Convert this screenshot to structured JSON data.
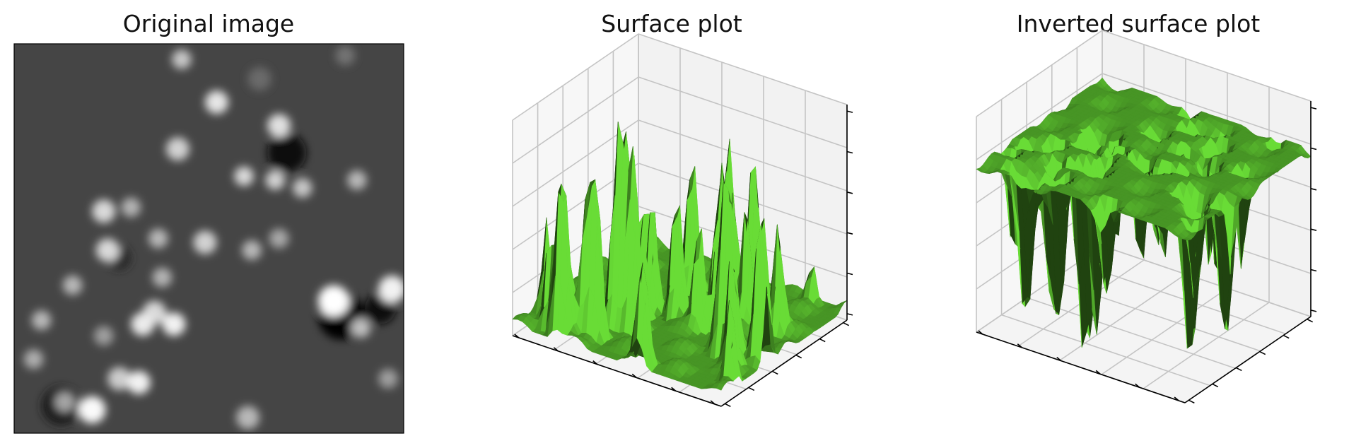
{
  "chart_data": [
    {
      "type": "heatmap",
      "title": "Original image",
      "colormap": "gray",
      "background_level": 0.27,
      "blobs": [
        {
          "cx": 0.43,
          "cy": 0.04,
          "r": 0.025,
          "v": 0.78
        },
        {
          "cx": 0.52,
          "cy": 0.15,
          "r": 0.03,
          "v": 0.9
        },
        {
          "cx": 0.68,
          "cy": 0.21,
          "r": 0.03,
          "v": 0.88
        },
        {
          "cx": 0.42,
          "cy": 0.27,
          "r": 0.03,
          "v": 0.82
        },
        {
          "cx": 0.59,
          "cy": 0.34,
          "r": 0.025,
          "v": 0.85
        },
        {
          "cx": 0.67,
          "cy": 0.35,
          "r": 0.025,
          "v": 0.82
        },
        {
          "cx": 0.74,
          "cy": 0.37,
          "r": 0.025,
          "v": 0.78
        },
        {
          "cx": 0.88,
          "cy": 0.35,
          "r": 0.025,
          "v": 0.72
        },
        {
          "cx": 0.23,
          "cy": 0.43,
          "r": 0.03,
          "v": 0.85
        },
        {
          "cx": 0.3,
          "cy": 0.42,
          "r": 0.025,
          "v": 0.7
        },
        {
          "cx": 0.24,
          "cy": 0.53,
          "r": 0.03,
          "v": 0.85
        },
        {
          "cx": 0.37,
          "cy": 0.5,
          "r": 0.025,
          "v": 0.72
        },
        {
          "cx": 0.49,
          "cy": 0.51,
          "r": 0.03,
          "v": 0.82
        },
        {
          "cx": 0.61,
          "cy": 0.53,
          "r": 0.025,
          "v": 0.72
        },
        {
          "cx": 0.68,
          "cy": 0.5,
          "r": 0.025,
          "v": 0.66
        },
        {
          "cx": 0.38,
          "cy": 0.6,
          "r": 0.025,
          "v": 0.7
        },
        {
          "cx": 0.15,
          "cy": 0.62,
          "r": 0.025,
          "v": 0.72
        },
        {
          "cx": 0.36,
          "cy": 0.69,
          "r": 0.03,
          "v": 0.85
        },
        {
          "cx": 0.33,
          "cy": 0.72,
          "r": 0.03,
          "v": 0.92
        },
        {
          "cx": 0.41,
          "cy": 0.72,
          "r": 0.03,
          "v": 0.95
        },
        {
          "cx": 0.07,
          "cy": 0.71,
          "r": 0.025,
          "v": 0.72
        },
        {
          "cx": 0.23,
          "cy": 0.75,
          "r": 0.025,
          "v": 0.62
        },
        {
          "cx": 0.82,
          "cy": 0.66,
          "r": 0.04,
          "v": 1.0
        },
        {
          "cx": 0.97,
          "cy": 0.63,
          "r": 0.035,
          "v": 0.95
        },
        {
          "cx": 0.89,
          "cy": 0.73,
          "r": 0.025,
          "v": 0.75
        },
        {
          "cx": 0.05,
          "cy": 0.81,
          "r": 0.025,
          "v": 0.68
        },
        {
          "cx": 0.27,
          "cy": 0.86,
          "r": 0.03,
          "v": 0.8
        },
        {
          "cx": 0.32,
          "cy": 0.87,
          "r": 0.03,
          "v": 0.95
        },
        {
          "cx": 0.13,
          "cy": 0.92,
          "r": 0.025,
          "v": 0.65
        },
        {
          "cx": 0.2,
          "cy": 0.94,
          "r": 0.035,
          "v": 0.98
        },
        {
          "cx": 0.6,
          "cy": 0.96,
          "r": 0.03,
          "v": 0.72
        },
        {
          "cx": 0.96,
          "cy": 0.86,
          "r": 0.025,
          "v": 0.62
        },
        {
          "cx": 0.63,
          "cy": 0.09,
          "r": 0.03,
          "v": 0.42
        },
        {
          "cx": 0.85,
          "cy": 0.03,
          "r": 0.025,
          "v": 0.45
        }
      ],
      "dark_spots": [
        {
          "cx": 0.7,
          "cy": 0.28,
          "r": 0.05,
          "v": 0.05
        },
        {
          "cx": 0.84,
          "cy": 0.7,
          "r": 0.06,
          "v": 0.02
        },
        {
          "cx": 0.94,
          "cy": 0.68,
          "r": 0.04,
          "v": 0.05
        },
        {
          "cx": 0.12,
          "cy": 0.93,
          "r": 0.05,
          "v": 0.1
        },
        {
          "cx": 0.27,
          "cy": 0.55,
          "r": 0.03,
          "v": 0.15
        }
      ]
    },
    {
      "type": "surface3d",
      "title": "Surface plot",
      "color": "#5bbf2f",
      "surface": "image intensity",
      "inverted": false,
      "x_ticks": 6,
      "y_ticks": 6,
      "z_ticks": 6,
      "tick_labels": false
    },
    {
      "type": "surface3d",
      "title": "Inverted surface plot",
      "color": "#5bbf2f",
      "surface": "inverted image intensity",
      "inverted": true,
      "x_ticks": 6,
      "y_ticks": 6,
      "z_ticks": 6,
      "tick_labels": false
    }
  ]
}
